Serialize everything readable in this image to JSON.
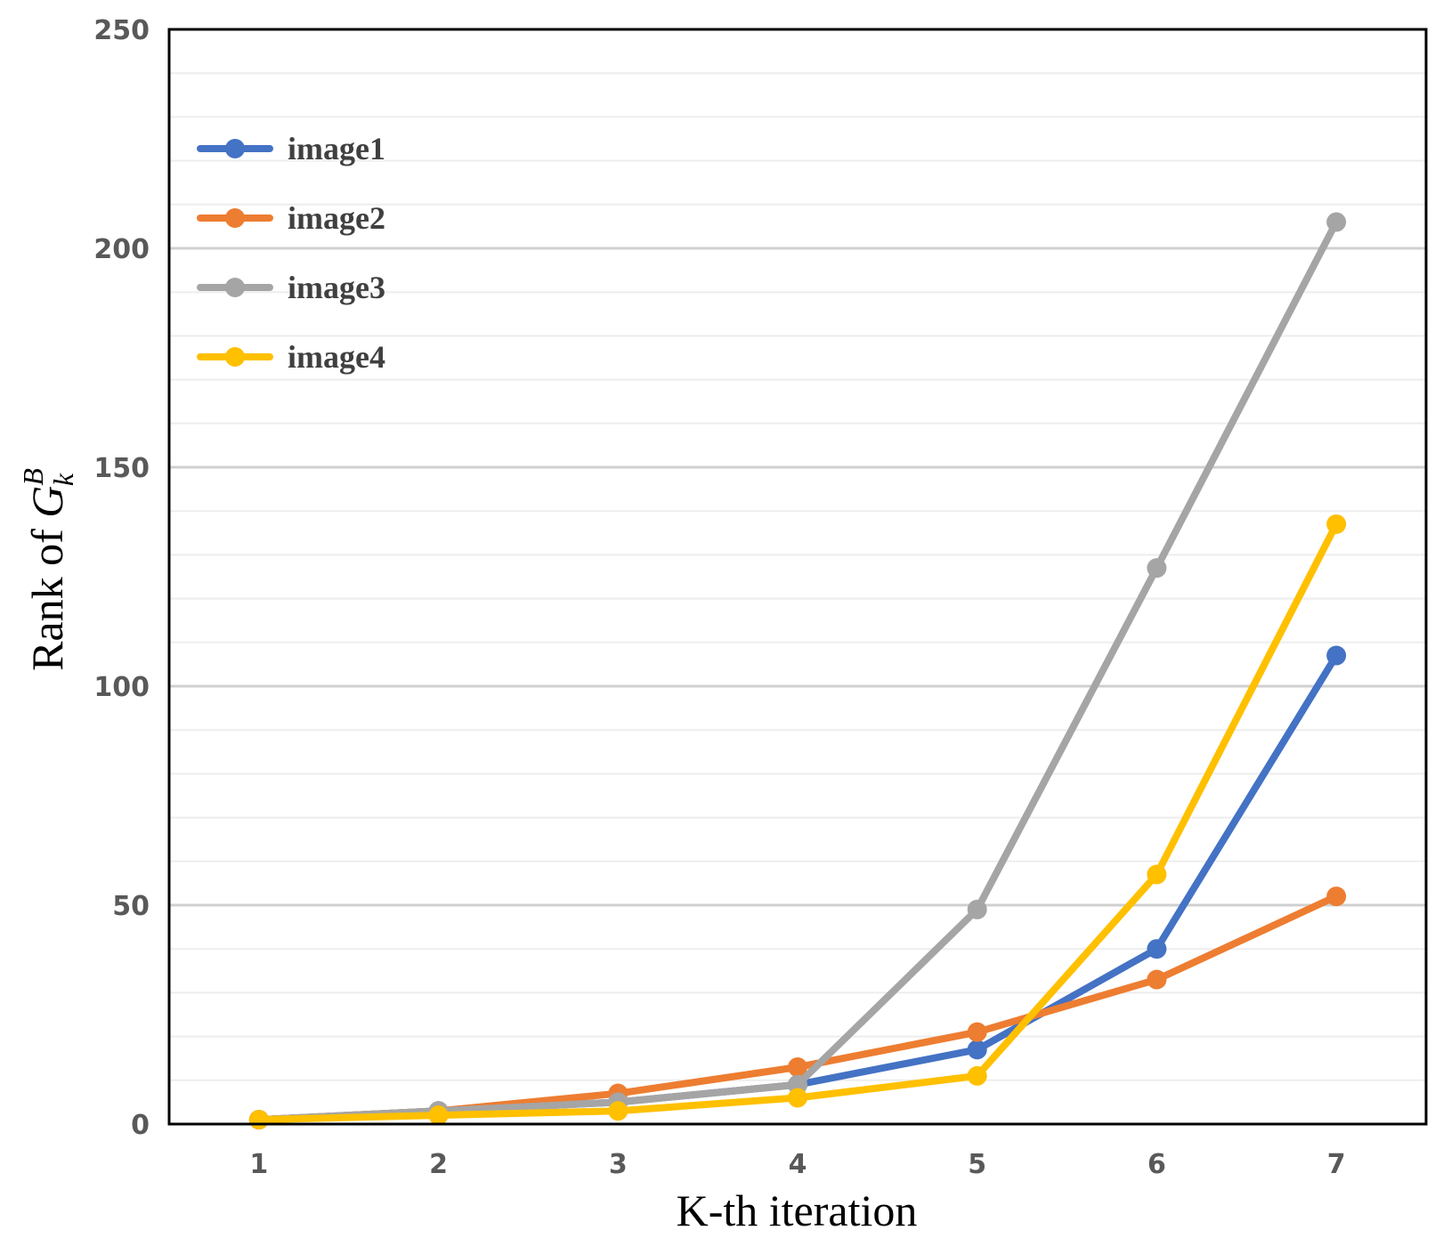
{
  "chart_data": {
    "type": "line",
    "title": "",
    "xlabel": "K-th iteration",
    "ylabel_prefix": "Rank of ",
    "ylabel_symbol": "G",
    "ylabel_superscript": "B",
    "ylabel_subscript": "k",
    "categories": [
      "1",
      "2",
      "3",
      "4",
      "5",
      "6",
      "7"
    ],
    "ylim": [
      0,
      250
    ],
    "yticks": [
      0,
      50,
      100,
      150,
      200,
      250
    ],
    "minor_grid_step": 10,
    "legend_position": "top-left",
    "series": [
      {
        "name": "image1",
        "color": "#4472C4",
        "values": [
          1,
          3,
          5,
          9,
          17,
          40,
          107
        ]
      },
      {
        "name": "image2",
        "color": "#ED7D31",
        "values": [
          1,
          3,
          7,
          13,
          21,
          33,
          52
        ]
      },
      {
        "name": "image3",
        "color": "#A5A5A5",
        "values": [
          1,
          3,
          5,
          9,
          49,
          127,
          206
        ]
      },
      {
        "name": "image4",
        "color": "#FFC000",
        "values": [
          1,
          2,
          3,
          6,
          11,
          57,
          137
        ]
      }
    ]
  }
}
